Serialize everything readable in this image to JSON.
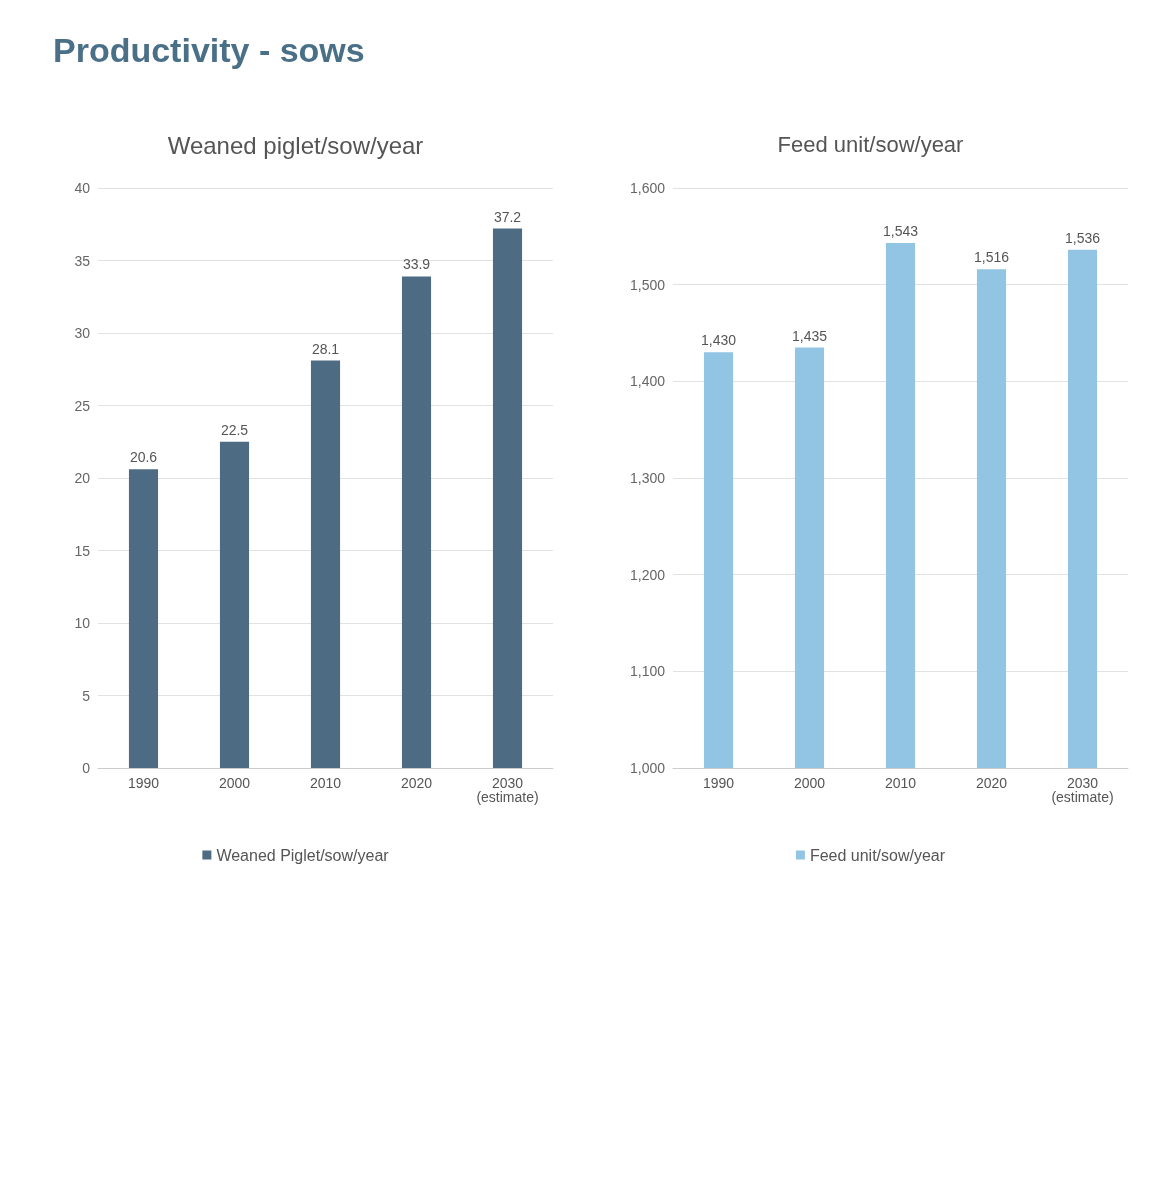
{
  "chart_data": [
    {
      "type": "bar",
      "title": "Productivity - sows",
      "subtitle": "Weaned piglet/sow/year",
      "categories": [
        "1990",
        "2000",
        "2010",
        "2020",
        "2030\n(estimate)"
      ],
      "series": [
        {
          "name": "Weaned Piglet/sow/year",
          "color": "#4d6b82",
          "values": [
            20.6,
            22.5,
            28.1,
            33.9,
            37.2
          ]
        }
      ],
      "ylim": [
        0,
        40
      ],
      "yticks": [
        0,
        5,
        10,
        15,
        20,
        25,
        30,
        35,
        40
      ],
      "grid": "y",
      "legend": "bottom",
      "data_labels": true
    },
    {
      "type": "bar",
      "title": "Feed unit/sow/year",
      "categories": [
        "1990",
        "2000",
        "2010",
        "2020",
        "2030\n(estimate)"
      ],
      "series": [
        {
          "name": "Feed unit/sow/year",
          "color": "#92c5e3",
          "values": [
            1430,
            1435,
            1543,
            1516,
            1536
          ],
          "value_labels": [
            "1,430",
            "1,435",
            "1,543",
            "1,516",
            "1,536"
          ]
        }
      ],
      "ylim": [
        1000,
        1600
      ],
      "yticks": [
        {
          "value": 1000,
          "label": "1,000"
        },
        {
          "value": 1100,
          "label": "1,100"
        },
        {
          "value": 1200,
          "label": "1,200"
        },
        {
          "value": 1300,
          "label": "1,300"
        },
        {
          "value": 1400,
          "label": "1,400"
        },
        {
          "value": 1500,
          "label": "1,500"
        },
        {
          "value": 1600,
          "label": "1,600"
        }
      ],
      "grid": "y",
      "legend": "bottom"
    }
  ]
}
